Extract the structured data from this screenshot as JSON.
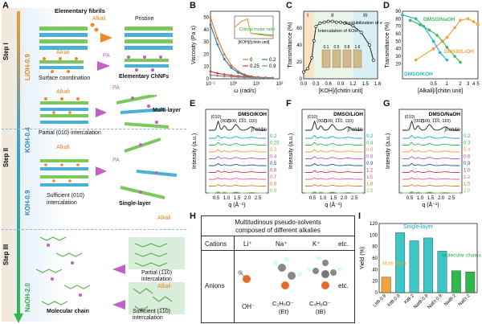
{
  "panel_a": {
    "letter": "A",
    "steps": [
      "Step I",
      "Step II",
      "Step III"
    ],
    "reagents": [
      "LiOH-0.9",
      "KOH-0.4",
      "KOH-0.9",
      "NaOH-2.0"
    ],
    "labels": {
      "fibrils": "Elementary fibrils",
      "pristine": "Pristine",
      "alkali": "Alkali",
      "pa": "PA",
      "surface": "Surface coordination",
      "chnfs": "Elementary ChNFs",
      "partial010": "Partial (010) intercalation",
      "multilayer": "Multi-layer",
      "sufficient010_1": "Sufficient (010)",
      "sufficient010_2": "intercalation",
      "singlelayer": "Single-layer",
      "partial110_1": "Partial (1̅1̅0)",
      "partial110_2": "intercalation",
      "molecular": "Molecular chain",
      "sufficient110_1": "Sufficient (1̅1̅0)",
      "sufficient110_2": "intercalation"
    }
  },
  "panel_h": {
    "letter": "H",
    "title1": "Multitudinous pseudo-solvents",
    "title2": "composed of different alkalies",
    "cations_label": "Cations",
    "cations": [
      "Li⁺",
      "Na⁺",
      "K⁺",
      "etc."
    ],
    "anions_label": "Anions",
    "anions": [
      "OH⁻",
      "C₂H₅O⁻",
      "C₄H₉O⁻",
      "etc."
    ],
    "anion_tags": [
      "(Et)",
      "(tB)"
    ]
  },
  "chart_data": [
    {
      "panel": "B",
      "type": "line",
      "xlabel": "ω (rad/s)",
      "ylabel": "Viscosity (Pa s)",
      "xscale": "log",
      "xlim": [
        0.1,
        100
      ],
      "ylim": [
        0,
        55
      ],
      "xticks": [
        "10⁻¹",
        "10⁰",
        "10¹",
        "10²"
      ],
      "yticks": [
        "0",
        "10",
        "20",
        "30",
        "40",
        "50"
      ],
      "series": [
        {
          "name": "0",
          "color": "#e07b20",
          "values": [
            50,
            33,
            20,
            11,
            6,
            3.5,
            2,
            1.2,
            0.8,
            0.5
          ]
        },
        {
          "name": "0.2",
          "color": "#2a7fc0",
          "values": [
            44,
            28,
            16,
            9,
            5,
            2.8,
            1.6,
            1,
            0.6,
            0.4
          ]
        },
        {
          "name": "0.25",
          "color": "#d23c3c",
          "values": [
            6,
            4.5,
            3.5,
            2.8,
            2.2,
            1.8,
            1.5,
            1.2,
            1,
            0.8
          ]
        },
        {
          "name": "0.9",
          "color": "#8a8a8a",
          "values": [
            3,
            2.5,
            2,
            1.7,
            1.4,
            1.2,
            1,
            0.8,
            0.7,
            0.6
          ]
        }
      ],
      "x": [
        0.1,
        0.2,
        0.4,
        0.8,
        1.6,
        3,
        6,
        12,
        25,
        50
      ],
      "inset": {
        "annotation": "Critical molar ratio",
        "xlabel": "[KOH]/[chitin unit]",
        "x": [
          0,
          0.1,
          0.2,
          0.25,
          0.3,
          0.4,
          0.5,
          0.6
        ],
        "viscosity": [
          20,
          30,
          35,
          10,
          9,
          8,
          7,
          6
        ],
        "modulus": [
          120,
          180,
          210,
          60,
          50,
          40,
          30,
          25
        ]
      }
    },
    {
      "panel": "C",
      "type": "line",
      "xlabel": "[KOH]/[chitin unit]",
      "ylabel": "Transmittance (%)",
      "xlim": [
        0,
        1.8
      ],
      "ylim": [
        0,
        80
      ],
      "xticks": [
        "0.0",
        "0.3",
        "0.6",
        "0.9",
        "1.2",
        "1.5",
        "1.8"
      ],
      "yticks": [
        "0",
        "20",
        "40",
        "60"
      ],
      "regions": [
        "I",
        "II",
        "III"
      ],
      "annotations": [
        "Intercalation of KOH",
        "Insolubilization of excessive KOH"
      ],
      "vial_labels": [
        "0.1",
        "0.5",
        "0.8",
        "1.6"
      ],
      "x": [
        0,
        0.1,
        0.2,
        0.25,
        0.3,
        0.4,
        0.5,
        0.6,
        0.7,
        0.8,
        0.9,
        1.0,
        1.2,
        1.4,
        1.6,
        1.7
      ],
      "values": [
        8,
        12,
        25,
        45,
        62,
        66,
        67,
        68,
        68,
        67,
        67,
        66,
        63,
        55,
        40,
        22
      ]
    },
    {
      "panel": "D",
      "type": "line",
      "xlabel": "[Alkali]/[chitin unit]",
      "ylabel": "Transmittance (%)",
      "xscale": "log",
      "xlim": [
        0.1,
        5
      ],
      "ylim": [
        0,
        90
      ],
      "xticks": [
        "0.5",
        "1",
        "2",
        "3",
        "4",
        "5"
      ],
      "yticks": [
        "20",
        "30",
        "40",
        "50",
        "60",
        "70",
        "80",
        "90"
      ],
      "series": [
        {
          "name": "DMSO/NaOH",
          "color": "#3cbf5a",
          "x": [
            0.15,
            0.25,
            0.4,
            0.6,
            0.8,
            1,
            1.5,
            2
          ],
          "values": [
            78,
            72,
            65,
            58,
            50,
            42,
            30,
            22
          ]
        },
        {
          "name": "DMSO/LiOH",
          "color": "#f2a33a",
          "x": [
            0.2,
            0.5,
            1,
            1.5,
            2,
            3,
            4,
            5
          ],
          "values": [
            25,
            40,
            55,
            68,
            78,
            80,
            76,
            72
          ]
        },
        {
          "name": "DMSO/KOH",
          "color": "#2ab8c8",
          "x": [
            0.1,
            0.2,
            0.3,
            0.5,
            0.7,
            1
          ],
          "values": [
            85,
            80,
            70,
            50,
            35,
            25
          ]
        }
      ]
    },
    {
      "panel": "E",
      "type": "line",
      "title": "DMSO/KOH",
      "xlabel": "q (Å⁻¹)",
      "ylabel": "Intensity (a.u.)",
      "xlim": [
        0,
        3
      ],
      "xticks": [
        "0.5",
        "1.0",
        "1.5",
        "2.0",
        "2.5"
      ],
      "peaks": [
        "(010)",
        "(002)",
        "(100, 1̅1̅0, 110)"
      ],
      "reference": "β-chitin",
      "series_labels": [
        "0.2",
        "0.25",
        "0.3",
        "0.4",
        "0.5",
        "0.6",
        "0.7",
        "0.8",
        "0.9"
      ]
    },
    {
      "panel": "F",
      "type": "line",
      "title": "DMSO/LiOH",
      "xlabel": "q (Å⁻¹)",
      "ylabel": "Intensity (a.u.)",
      "xlim": [
        0,
        3
      ],
      "xticks": [
        "0.5",
        "1.0",
        "1.5",
        "2.0",
        "2.5"
      ],
      "peaks": [
        "(010)",
        "(002)",
        "(100, 1̅1̅0, 110)"
      ],
      "reference": "β-chitin",
      "series_labels": [
        "0.2",
        "0.4",
        "0.6",
        "0.8",
        "0.9",
        "1.2",
        "1.5",
        "1.8",
        "2.0"
      ]
    },
    {
      "panel": "G",
      "type": "line",
      "title": "DMSO/NaOH",
      "xlabel": "q (Å⁻¹)",
      "ylabel": "Intensity (a.u.)",
      "xlim": [
        0,
        3
      ],
      "xticks": [
        "0.5",
        "1.0",
        "1.5",
        "2.0",
        "2.5"
      ],
      "peaks": [
        "(010)",
        "(002)",
        "(100, 1̅1̅0, 110)"
      ],
      "reference": "β-chitin",
      "series_labels": [
        "0.2",
        "0.3",
        "0.4",
        "0.6",
        "0.9",
        "1.0",
        "1.2",
        "1.5",
        "2.0"
      ]
    },
    {
      "panel": "I",
      "type": "bar",
      "ylabel": "Yield (%)",
      "ylim": [
        0,
        120
      ],
      "yticks": [
        "0",
        "20",
        "40",
        "60",
        "80",
        "100",
        "120"
      ],
      "categories": [
        "LitB-0.9",
        "KtB-0.9",
        "KtB-2",
        "NatB-0.9",
        "NaEt-0.9",
        "NatB-2",
        "NaEt-2"
      ],
      "values": [
        27,
        104,
        90,
        95,
        72,
        38,
        36
      ],
      "colors": [
        "#f2a33a",
        "#3cc6c8",
        "#3cc6c8",
        "#3cc6c8",
        "#3cc6c8",
        "#2fb84c",
        "#2fb84c"
      ],
      "groups": [
        "Multi-layer",
        "Single-layer",
        "Molecular chains"
      ]
    }
  ]
}
